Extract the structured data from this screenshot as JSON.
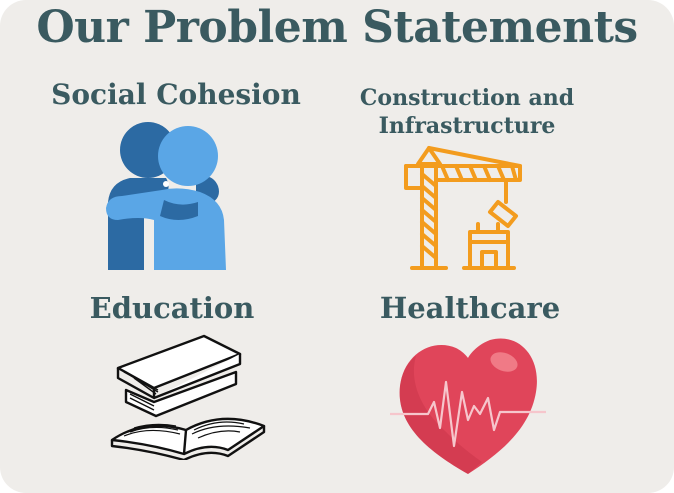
{
  "title": "Our Problem Statements",
  "items": [
    {
      "label": "Social Cohesion",
      "icon": "hug-icon"
    },
    {
      "label_line1": "Construction and",
      "label_line2": "Infrastructure",
      "icon": "crane-icon"
    },
    {
      "label": "Education",
      "icon": "books-icon"
    },
    {
      "label": "Healthcare",
      "icon": "heartbeat-icon"
    }
  ],
  "colors": {
    "background": "#efedea",
    "heading": "#3a5a60",
    "hug_dark": "#2c6aa3",
    "hug_light": "#5aa6e6",
    "crane": "#f39c1e",
    "heart": "#e0455a"
  }
}
